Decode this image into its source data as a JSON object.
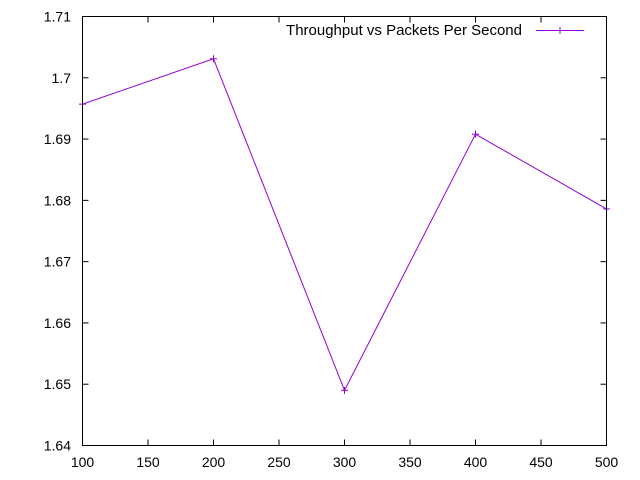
{
  "chart_data": {
    "type": "line",
    "title": "",
    "xlabel": "",
    "ylabel": "",
    "xlim": [
      100,
      500
    ],
    "ylim": [
      1.64,
      1.71
    ],
    "x_ticks": [
      "100",
      "150",
      "200",
      "250",
      "300",
      "350",
      "400",
      "450",
      "500"
    ],
    "y_ticks": [
      "1.64",
      "1.65",
      "1.66",
      "1.67",
      "1.68",
      "1.69",
      "1.7",
      "1.71"
    ],
    "grid": false,
    "legend_position": "top-right",
    "series": [
      {
        "name": "Throughput vs Packets Per Second",
        "color": "#9400d3",
        "marker": "plus",
        "points": [
          {
            "x": 100,
            "y": 1.6957
          },
          {
            "x": 200,
            "y": 1.7031
          },
          {
            "x": 300,
            "y": 1.649
          },
          {
            "x": 400,
            "y": 1.6908
          },
          {
            "x": 500,
            "y": 1.6786
          }
        ]
      }
    ]
  }
}
